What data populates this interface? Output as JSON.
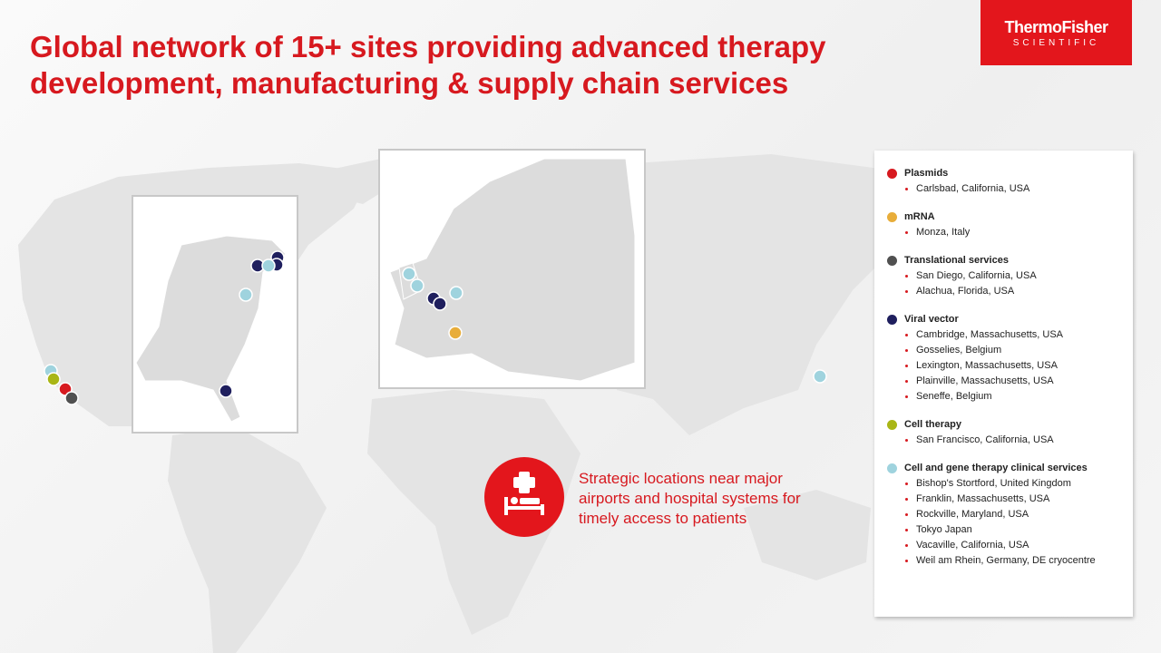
{
  "header": {
    "title_lines": [
      "Global network of 15+ sites providing advanced therapy",
      "development, manufacturing & supply chain services"
    ],
    "logo": {
      "line1": "ThermoFisher",
      "line2": "SCIENTIFIC"
    }
  },
  "callout": [
    "Strategic locations near major",
    "airports and hospital systems for",
    "timely access to patients"
  ],
  "legend": [
    {
      "name": "Plasmids",
      "color": "#d7191f",
      "sites": [
        "Carlsbad, California, USA"
      ]
    },
    {
      "name": "mRNA",
      "color": "#e8ad3a",
      "sites": [
        "Monza, Italy"
      ]
    },
    {
      "name": "Translational services",
      "color": "#505050",
      "sites": [
        "San Diego, California, USA",
        "Alachua, Florida, USA"
      ]
    },
    {
      "name": "Viral vector",
      "color": "#1f1f5e",
      "sites": [
        "Cambridge, Massachusetts, USA",
        "Gosselies, Belgium",
        "Lexington, Massachusetts, USA",
        "Plainville, Massachusetts, USA",
        "Seneffe, Belgium"
      ]
    },
    {
      "name": "Cell therapy",
      "color": "#a9b616",
      "sites": [
        "San Francisco, California, USA"
      ]
    },
    {
      "name": "Cell and gene therapy clinical services",
      "color": "#9fd3de",
      "sites": [
        "Bishop's Stortford, United Kingdom",
        "Franklin, Massachusetts, USA",
        "Rockville, Maryland, USA",
        "Tokyo Japan",
        "Vacaville, California, USA",
        "Weil am Rhein, Germany, DE cryocentre"
      ]
    }
  ]
}
